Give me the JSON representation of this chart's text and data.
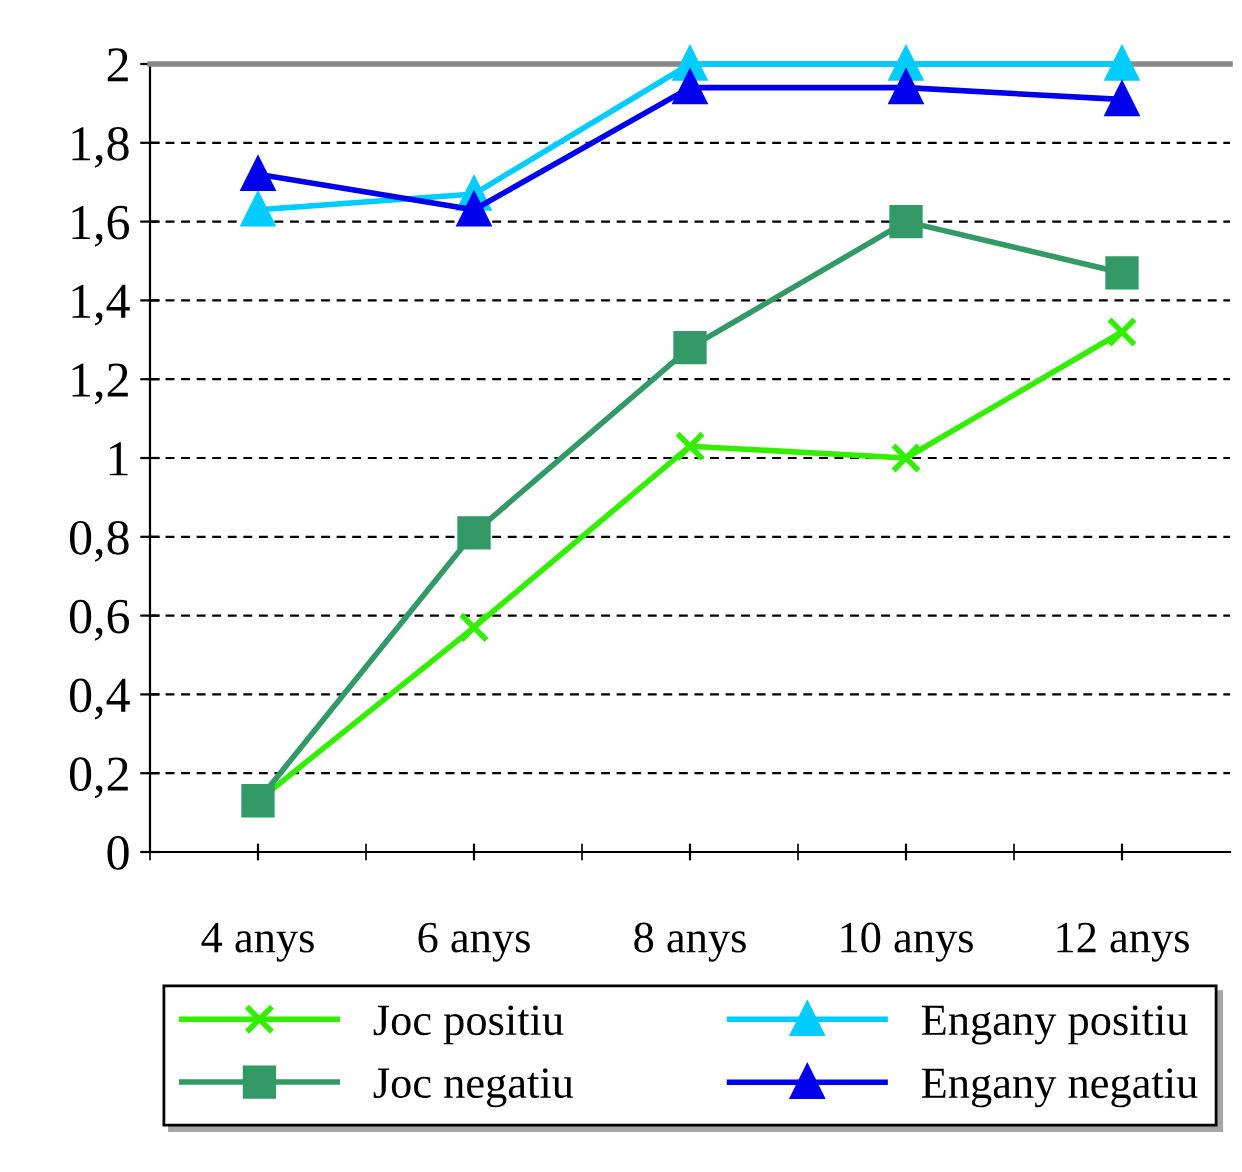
{
  "chart_data": {
    "type": "line",
    "categories": [
      "4 anys",
      "6 anys",
      "8 anys",
      "10 anys",
      "12 anys"
    ],
    "series": [
      {
        "name": "Joc positiu",
        "color": "#33ee00",
        "marker": "cross",
        "values": [
          0.13,
          0.57,
          1.03,
          1.0,
          1.32
        ]
      },
      {
        "name": "Joc negatiu",
        "color": "#339966",
        "marker": "square",
        "values": [
          0.13,
          0.81,
          1.28,
          1.6,
          1.47
        ]
      },
      {
        "name": "Engany positiu",
        "color": "#00ccff",
        "marker": "triangle",
        "values": [
          1.63,
          1.67,
          2.0,
          2.0,
          2.0
        ]
      },
      {
        "name": "Engany negatiu",
        "color": "#0000ee",
        "marker": "triangle",
        "values": [
          1.72,
          1.63,
          1.94,
          1.94,
          1.91
        ]
      }
    ],
    "ylim": [
      0,
      2
    ],
    "yticks": [
      0,
      {
        "value": 0.2,
        "label": "0,2"
      },
      {
        "value": 0.4,
        "label": "0,4"
      },
      {
        "value": 0.6,
        "label": "0,6"
      },
      {
        "value": 0.8,
        "label": "0,8"
      },
      1,
      {
        "value": 1.2,
        "label": "1,2"
      },
      {
        "value": 1.4,
        "label": "1,4"
      },
      {
        "value": 1.6,
        "label": "1,6"
      },
      {
        "value": 1.8,
        "label": "1,8"
      },
      2
    ],
    "grid": "y",
    "legend": "bottom",
    "line_style": "solid"
  }
}
